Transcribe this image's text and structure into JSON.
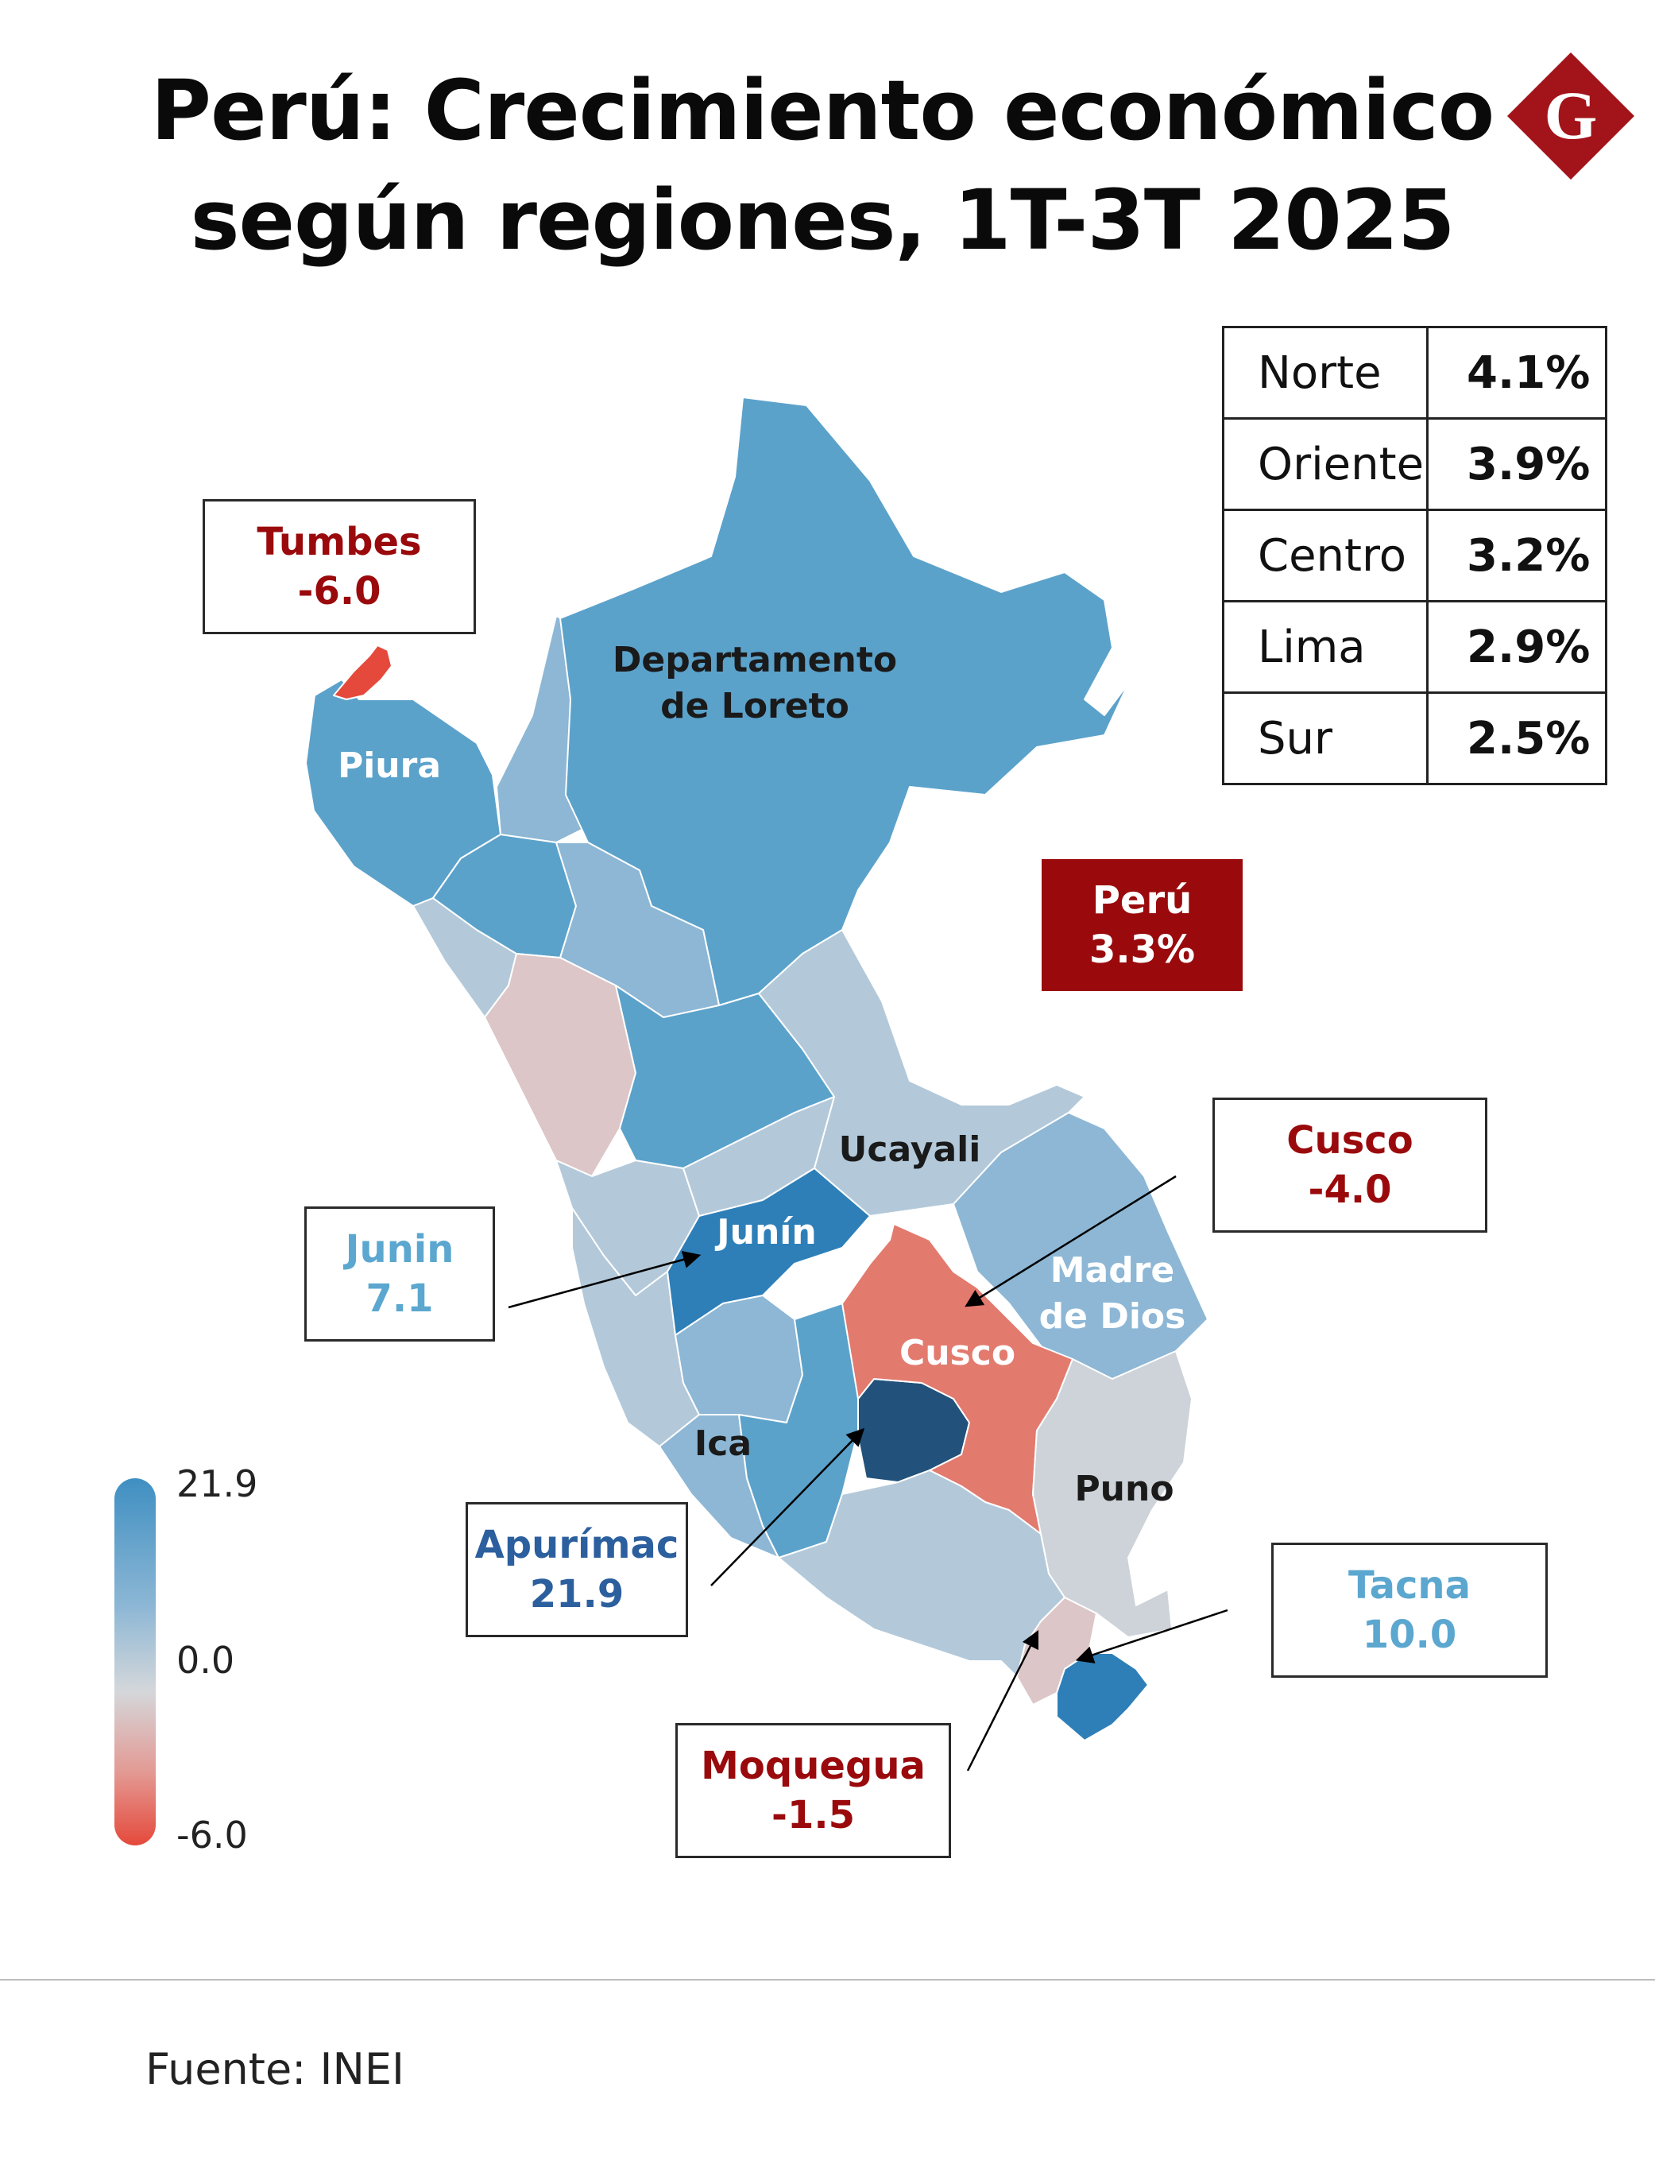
{
  "title": {
    "line1": "Perú: Crecimiento económico",
    "line2": "según regiones, 1T-3T 2025"
  },
  "logo": {
    "letter": "G",
    "icon": "g-diamond-logo",
    "color": "#a3141a"
  },
  "macro_regions": [
    {
      "name": "Norte",
      "value": "4.1%"
    },
    {
      "name": "Oriente",
      "value": "3.9%"
    },
    {
      "name": "Centro",
      "value": "3.2%"
    },
    {
      "name": "Lima",
      "value": "2.9%"
    },
    {
      "name": "Sur",
      "value": "2.5%"
    }
  ],
  "national": {
    "name": "Perú",
    "value": "3.3%"
  },
  "map_labels": {
    "loreto_line1": "Departamento",
    "loreto_line2": "de Loreto",
    "piura": "Piura",
    "ucayali": "Ucayali",
    "junin": "Junín",
    "madre_line1": "Madre",
    "madre_line2": "de Dios",
    "cusco": "Cusco",
    "ica": "Ica",
    "puno": "Puno"
  },
  "callouts": {
    "tumbes": {
      "name": "Tumbes",
      "value": "-6.0"
    },
    "cusco": {
      "name": "Cusco",
      "value": "-4.0"
    },
    "junin": {
      "name": "Junin",
      "value": "7.1"
    },
    "apurimac": {
      "name": "Apurímac",
      "value": "21.9"
    },
    "tacna": {
      "name": "Tacna",
      "value": "10.0"
    },
    "moquegua": {
      "name": "Moquegua",
      "value": "-1.5"
    }
  },
  "legend": {
    "max": "21.9",
    "mid": "0.0",
    "min": "-6.0"
  },
  "colors": {
    "negative_text": "#9a0a0c",
    "light_blue_text": "#5ba7cf",
    "dark_blue_text": "#2c5f9e",
    "strong_blue": "#2e7fb8",
    "medium_blue": "#5ba2cb",
    "light_blue": "#8db7d5",
    "pale_blue": "#b3c9da",
    "grey": "#cdd3d8",
    "pale_pink": "#dcc6c8",
    "salmon": "#e37a6e",
    "red": "#e5493b",
    "navy": "#22527b"
  },
  "source": "Fuente: INEI"
}
